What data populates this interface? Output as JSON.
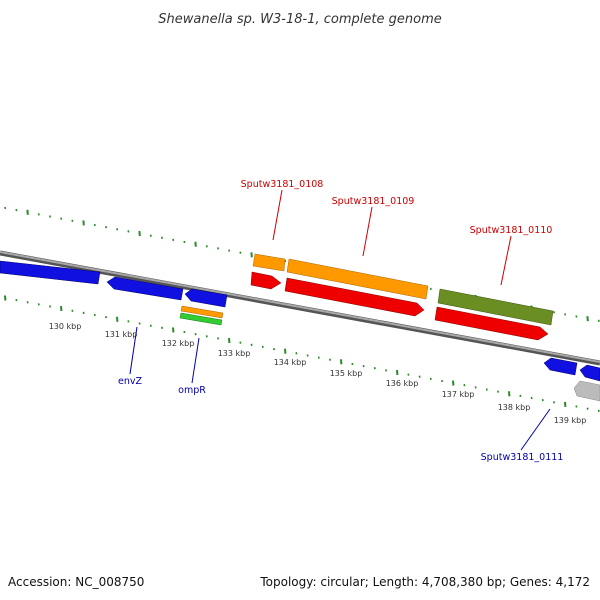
{
  "title": "Shewanella sp. W3-18-1, complete genome",
  "footer": {
    "accession": "Accession: NC_008750",
    "summary": "Topology: circular; Length: 4,708,380 bp; Genes: 4,172"
  },
  "colors": {
    "backbone": "#888888",
    "tick": "#2a8a2a",
    "blue_gene": "#1010e0",
    "red_gene": "#ee0000",
    "orange_gene": "#ff9900",
    "olive_gene": "#6b8e23",
    "green_gene": "#33cc33",
    "grey_gene": "#bbbbbb",
    "red_label": "#cc0000",
    "blue_label": "#0000aa"
  },
  "kbp_labels": [
    "130 kbp",
    "131 kbp",
    "132 kbp",
    "133 kbp",
    "134 kbp",
    "135 kbp",
    "136 kbp",
    "137 kbp",
    "138 kbp",
    "139 kbp"
  ],
  "gene_labels": {
    "sputw0108": "Sputw3181_0108",
    "sputw0109": "Sputw3181_0109",
    "sputw0110": "Sputw3181_0110",
    "envz": "envZ",
    "ompr": "ompR",
    "sputw0111": "Sputw3181_0111"
  }
}
